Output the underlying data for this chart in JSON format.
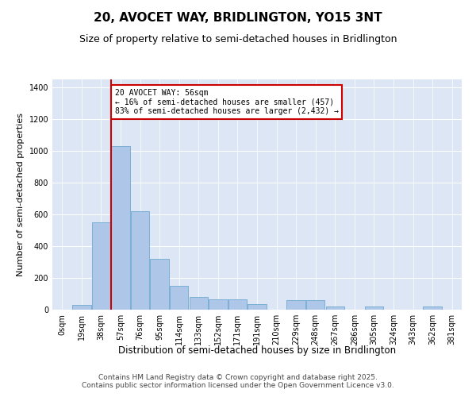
{
  "title": "20, AVOCET WAY, BRIDLINGTON, YO15 3NT",
  "subtitle": "Size of property relative to semi-detached houses in Bridlington",
  "xlabel": "Distribution of semi-detached houses by size in Bridlington",
  "ylabel": "Number of semi-detached properties",
  "bin_labels": [
    "0sqm",
    "19sqm",
    "38sqm",
    "57sqm",
    "76sqm",
    "95sqm",
    "114sqm",
    "133sqm",
    "152sqm",
    "171sqm",
    "191sqm",
    "210sqm",
    "229sqm",
    "248sqm",
    "267sqm",
    "286sqm",
    "305sqm",
    "324sqm",
    "343sqm",
    "362sqm",
    "381sqm"
  ],
  "bar_values": [
    0,
    30,
    550,
    1030,
    620,
    320,
    150,
    80,
    65,
    65,
    35,
    0,
    58,
    58,
    20,
    0,
    20,
    0,
    0,
    20,
    0
  ],
  "bar_color": "#aec6e8",
  "bar_edge_color": "#7aafd4",
  "subject_sqm": 56,
  "subject_label": "20 AVOCET WAY: 56sqm",
  "annotation_line1": "← 16% of semi-detached houses are smaller (457)",
  "annotation_line2": "83% of semi-detached houses are larger (2,432) →",
  "vline_color": "#cc0000",
  "annotation_box_color": "#cc0000",
  "vline_x": 2.5,
  "ylim": [
    0,
    1450
  ],
  "yticks": [
    0,
    200,
    400,
    600,
    800,
    1000,
    1200,
    1400
  ],
  "bg_color": "#dce6f5",
  "footer": "Contains HM Land Registry data © Crown copyright and database right 2025.\nContains public sector information licensed under the Open Government Licence v3.0.",
  "title_fontsize": 11,
  "subtitle_fontsize": 9,
  "xlabel_fontsize": 8.5,
  "ylabel_fontsize": 8,
  "tick_fontsize": 7,
  "footer_fontsize": 6.5,
  "annot_fontsize": 7
}
